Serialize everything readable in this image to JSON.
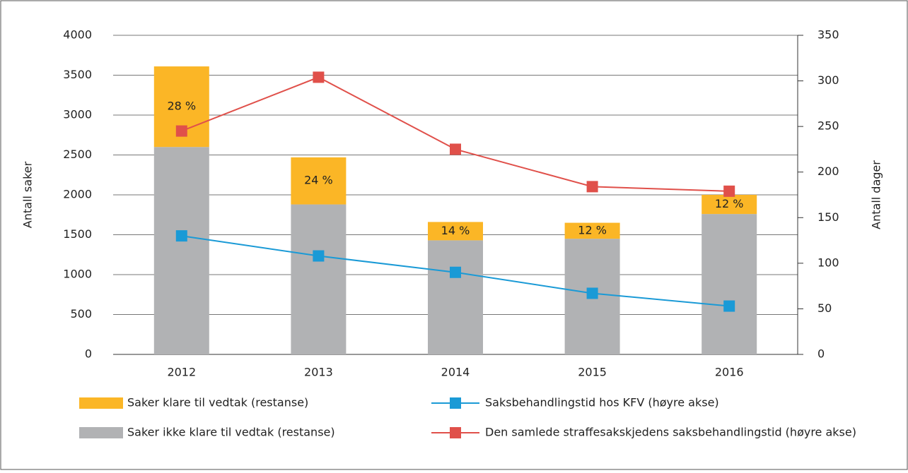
{
  "chart_data": {
    "type": "bar",
    "categories": [
      "2012",
      "2013",
      "2014",
      "2015",
      "2016"
    ],
    "ylabel": "Antall saker",
    "y2label": "Antall dager",
    "ylim": [
      0,
      4000
    ],
    "yticks": [
      0,
      500,
      1000,
      1500,
      2000,
      2500,
      3000,
      3500,
      4000
    ],
    "y2lim": [
      0,
      350
    ],
    "y2ticks": [
      0,
      50,
      100,
      150,
      200,
      250,
      300,
      350
    ],
    "grid": true,
    "series": [
      {
        "name": "Saker ikke klare til vedtak (restanse)",
        "type": "bar",
        "stack": true,
        "color": "#b1b2b4",
        "values": [
          2600,
          1880,
          1430,
          1450,
          1760
        ]
      },
      {
        "name": "Saker klare til vedtak (restanse)",
        "type": "bar",
        "stack": true,
        "color": "#fbb626",
        "values": [
          1010,
          590,
          230,
          200,
          240
        ]
      },
      {
        "name": "Saksbehandlingstid hos KFV (høyre akse)",
        "type": "line",
        "axis": "y2",
        "color": "#1a9ad6",
        "values": [
          130,
          108,
          90,
          67,
          53
        ]
      },
      {
        "name": "Den samlede straffesakskjedens saksbehandlingstid (høyre akse)",
        "type": "line",
        "axis": "y2",
        "color": "#e0504a",
        "values": [
          245,
          304,
          225,
          184,
          179
        ]
      }
    ],
    "annotations": [
      "28 %",
      "24 %",
      "14 %",
      "12 %",
      "12 %"
    ]
  }
}
